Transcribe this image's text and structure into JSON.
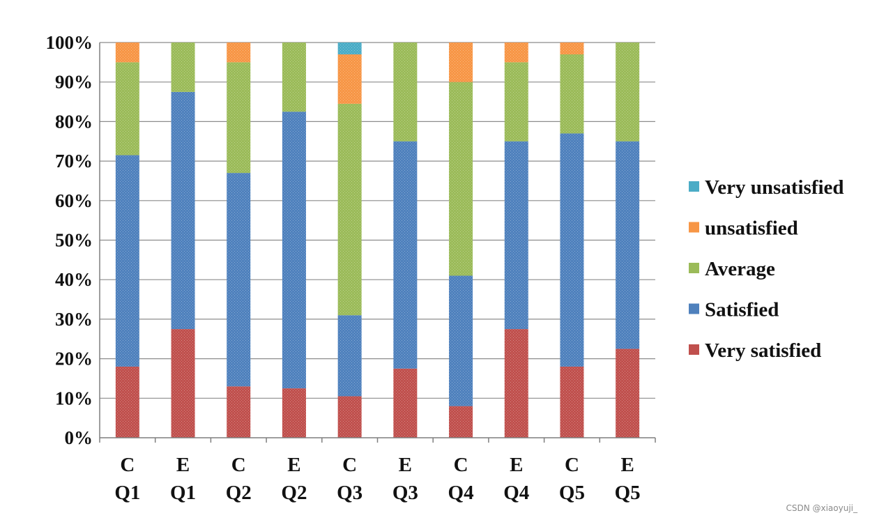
{
  "watermark": "CSDN @xiaoyuji_",
  "chart_data": {
    "type": "bar",
    "stacked": true,
    "categories": [
      [
        "C",
        "Q1"
      ],
      [
        "E",
        "Q1"
      ],
      [
        "C",
        "Q2"
      ],
      [
        "E",
        "Q2"
      ],
      [
        "C",
        "Q3"
      ],
      [
        "E",
        "Q3"
      ],
      [
        "C",
        "Q4"
      ],
      [
        "E",
        "Q4"
      ],
      [
        "C",
        "Q5"
      ],
      [
        "E",
        "Q5"
      ]
    ],
    "ylim": [
      0,
      100
    ],
    "yticks": [
      0,
      10,
      20,
      30,
      40,
      50,
      60,
      70,
      80,
      90,
      100
    ],
    "ytick_labels": [
      "0%",
      "10%",
      "20%",
      "30%",
      "40%",
      "50%",
      "60%",
      "70%",
      "80%",
      "90%",
      "100%"
    ],
    "grid": true,
    "legend_position": "right",
    "series": [
      {
        "name": "Very satisfied",
        "color": "#c0504d",
        "values": [
          18,
          27.5,
          13,
          12.5,
          10.5,
          17.5,
          8,
          27.5,
          18,
          22.5
        ]
      },
      {
        "name": "Satisfied",
        "color": "#4f81bd",
        "values": [
          53.5,
          60,
          54,
          70,
          20.5,
          57.5,
          33,
          47.5,
          59,
          52.5
        ]
      },
      {
        "name": "Average",
        "color": "#9bbb59",
        "values": [
          23.5,
          12.5,
          28,
          17.5,
          53.5,
          25,
          49,
          20,
          20,
          25
        ]
      },
      {
        "name": "unsatisfied",
        "color": "#f79646",
        "values": [
          5,
          0,
          5,
          0,
          12.5,
          0,
          10,
          5,
          3,
          0
        ]
      },
      {
        "name": "Very unsatisfied",
        "color": "#4bacc6",
        "values": [
          0,
          0,
          0,
          0,
          3,
          0,
          0,
          0,
          0,
          0
        ]
      }
    ],
    "legend_order": [
      "Very unsatisfied",
      "unsatisfied",
      "Average",
      "Satisfied",
      "Very satisfied"
    ]
  }
}
